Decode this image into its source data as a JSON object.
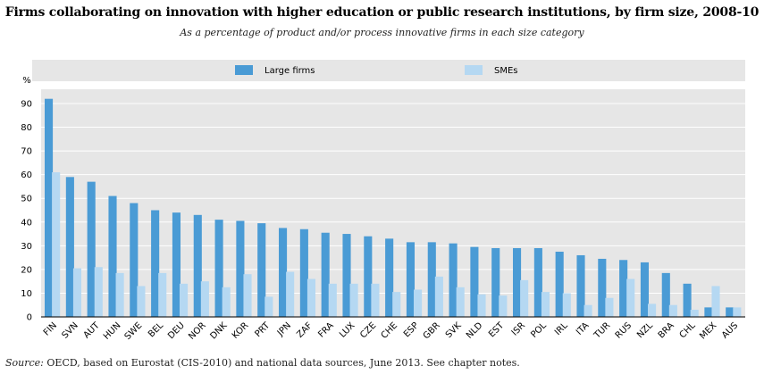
{
  "page": {
    "title": "Firms collaborating on innovation with higher education or public research institutions, by firm size, 2008-10",
    "subtitle": "As a percentage of product and/or process innovative firms in each size category",
    "source_label": "Source:",
    "source_text": "OECD, based on Eurostat (CIS-2010) and national data sources, June 2013. See chapter notes."
  },
  "chart_data": {
    "type": "bar",
    "ylabel": "%",
    "ylim": [
      0,
      100
    ],
    "yticks": [
      0,
      10,
      20,
      30,
      40,
      50,
      60,
      70,
      80,
      90
    ],
    "grid": true,
    "legend_position": "top",
    "categories": [
      "FIN",
      "SVN",
      "AUT",
      "HUN",
      "SWE",
      "BEL",
      "DEU",
      "NOR",
      "DNK",
      "KOR",
      "PRT",
      "JPN",
      "ZAF",
      "FRA",
      "LUX",
      "CZE",
      "CHE",
      "ESP",
      "GBR",
      "SVK",
      "NLD",
      "EST",
      "ISR",
      "POL",
      "IRL",
      "ITA",
      "TUR",
      "RUS",
      "NZL",
      "BRA",
      "CHL",
      "MEX",
      "AUS"
    ],
    "series": [
      {
        "name": "Large firms",
        "color": "#4a9bd5",
        "values": [
          92,
          59,
          57,
          51,
          48,
          45,
          44,
          43,
          41,
          40.5,
          39.5,
          37.5,
          37,
          35.5,
          35,
          34,
          33,
          31.5,
          31.5,
          31,
          29.5,
          29,
          29,
          29,
          27.5,
          26,
          24.5,
          24,
          23,
          18.5,
          14,
          4,
          4
        ]
      },
      {
        "name": "SMEs",
        "color": "#b5d8f2",
        "values": [
          61,
          20.5,
          21,
          18.5,
          13,
          18.5,
          14,
          15,
          12.5,
          18,
          8.5,
          19,
          16,
          14,
          14,
          14,
          10.5,
          11.5,
          17,
          12.5,
          9.5,
          9,
          15.5,
          10.5,
          10,
          5,
          8,
          16,
          5.5,
          5,
          3,
          13,
          4
        ]
      }
    ]
  }
}
